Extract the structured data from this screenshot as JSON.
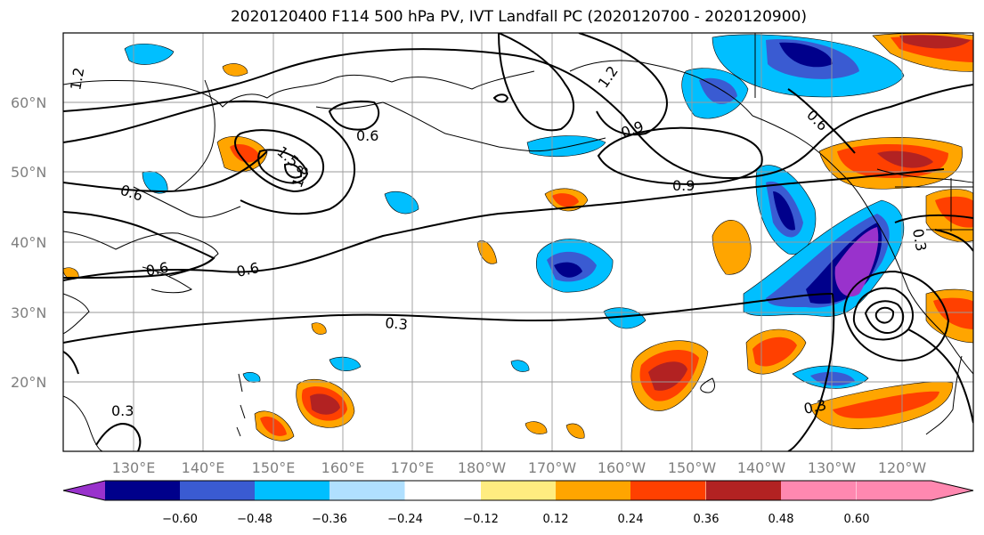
{
  "title": "2020120400 F114 500 hPa PV, IVT Landfall PC (2020120700 - 2020120900)",
  "latitudes": [
    "60°N",
    "50°N",
    "40°N",
    "30°N",
    "20°N"
  ],
  "longitudes": [
    "130°E",
    "140°E",
    "150°E",
    "160°E",
    "170°E",
    "180°W",
    "170°W",
    "160°W",
    "150°W",
    "140°W",
    "130°W",
    "120°W"
  ],
  "contour_labels": [
    "1.2",
    "1.5",
    "1.8",
    "0.6",
    "0.6",
    "0.6",
    "0.6",
    "0.9",
    "0.3",
    "0.3",
    "0.3",
    "0.3",
    "1.2",
    "0.9",
    "0.6"
  ],
  "colorbar": {
    "ticks": [
      "−0.60",
      "−0.48",
      "−0.36",
      "−0.24",
      "−0.12",
      "0.12",
      "0.24",
      "0.36",
      "0.48",
      "0.60"
    ],
    "colors": [
      "#9932cc",
      "#00008b",
      "#3a5bd2",
      "#00bfff",
      "#b0e0ff",
      "#ffffff",
      "#ffec80",
      "#ffa500",
      "#ff4000",
      "#b22222",
      "#ff88b0",
      "#ffec80"
    ]
  }
}
